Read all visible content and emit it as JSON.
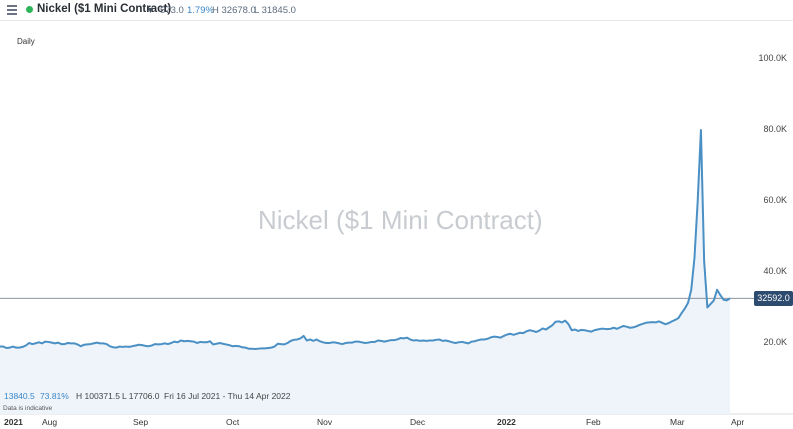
{
  "header": {
    "symbol": "Nickel ($1 Mini Contract)",
    "change": "573.0",
    "change_pct": "1.79%",
    "high": "H 32678.0",
    "low": "L 31845.0",
    "status_color": "#2eb55a",
    "icons": [
      "menu-icon",
      "chevron-down-icon"
    ]
  },
  "chart_header": {
    "interval": "Daily"
  },
  "watermark": "Nickel ($1 Mini Contract)",
  "summary": {
    "change": "13840.5",
    "change_pct": "73.81%",
    "high": "H 100371.5",
    "low": "L 17706.0",
    "range": "Fri 16 Jul 2021 - Thu 14 Apr 2022",
    "note": "Data is indicative"
  },
  "price_badge": "32592.0",
  "chart_data": {
    "type": "area",
    "x_labels": [
      "2021",
      "Aug",
      "Sep",
      "Oct",
      "Nov",
      "Dec",
      "2022",
      "Feb",
      "Mar",
      "Apr"
    ],
    "y_tick_labels": [
      "100.0K",
      "80.0K",
      "60.0K",
      "40.0K",
      "20.0K"
    ],
    "ylim": [
      0,
      111000
    ],
    "y_ticks": [
      20000,
      40000,
      60000,
      80000,
      100000
    ],
    "current_price": 32592,
    "line_color": "#4a90c4",
    "fill_color": "#eef4fa",
    "series": [
      {
        "values": [
          19000,
          19000,
          18600,
          18700,
          19000,
          18700,
          18700,
          18900,
          19300,
          20000,
          19700,
          19900,
          20200,
          19900,
          20400,
          20300,
          20100,
          19900,
          20100,
          19700,
          19700,
          20000,
          19900,
          19900,
          19600,
          19100,
          19500,
          19600,
          19700,
          19900,
          20100,
          19900,
          19900,
          19700,
          19100,
          18800,
          18700,
          19000,
          18900,
          19000,
          18900,
          19100,
          19300,
          19500,
          19400,
          19200,
          19100,
          19300,
          19700,
          19600,
          19700,
          19900,
          19700,
          20000,
          20400,
          20200,
          20700,
          20500,
          20600,
          20500,
          20400,
          20000,
          20300,
          20200,
          20200,
          20500,
          19600,
          19800,
          20000,
          19800,
          19600,
          19400,
          19100,
          19200,
          19100,
          18800,
          18700,
          18400,
          18400,
          18300,
          18400,
          18500,
          18500,
          18600,
          18700,
          19000,
          19800,
          19700,
          19600,
          20000,
          20600,
          20900,
          21000,
          21300,
          22000,
          20700,
          21000,
          20600,
          21000,
          20500,
          20200,
          20000,
          20000,
          20200,
          20100,
          19900,
          19700,
          20000,
          20100,
          20100,
          20400,
          20400,
          20200,
          20000,
          20100,
          20300,
          20300,
          20700,
          20600,
          20400,
          20600,
          20800,
          20800,
          21000,
          21400,
          21300,
          21500,
          21000,
          20700,
          20800,
          20600,
          20700,
          20600,
          20700,
          20700,
          20900,
          21000,
          20600,
          20700,
          20500,
          20200,
          20000,
          20200,
          20300,
          20100,
          19900,
          20400,
          20500,
          20800,
          21000,
          21000,
          21200,
          21600,
          21800,
          21700,
          21500,
          22000,
          22400,
          22600,
          22300,
          22600,
          22900,
          22800,
          23300,
          23600,
          23400,
          23100,
          23500,
          24100,
          23800,
          24400,
          25000,
          26000,
          26100,
          25800,
          26300,
          25300,
          23600,
          23800,
          23400,
          23700,
          23600,
          23400,
          23200,
          23600,
          23800,
          24000,
          24000,
          23900,
          24000,
          24300,
          24000,
          24400,
          24800,
          24600,
          24300,
          24400,
          24700,
          25100,
          25400,
          25700,
          25800,
          25900,
          25800,
          26100,
          25700,
          25300,
          25600,
          26100,
          26500,
          27000,
          28400,
          29700,
          31300,
          35000,
          44000,
          60000,
          80000,
          43000,
          30000,
          31000,
          32000,
          35000,
          33500,
          32200,
          32000,
          32592
        ]
      }
    ]
  }
}
